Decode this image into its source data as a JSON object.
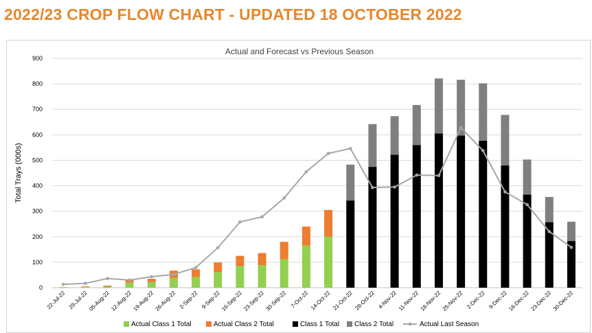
{
  "page": {
    "heading": "2022/23 CROP FLOW CHART - UPDATED 18 OCTOBER 2022"
  },
  "colors": {
    "actual_class1": "#92d050",
    "actual_class2": "#ed7d31",
    "class1": "#000000",
    "class2": "#7f7f7f",
    "last_season": "#a6a6a6",
    "heading": "#e8862a"
  },
  "chart_data": {
    "type": "bar",
    "stacked": true,
    "title": "Actual and Forecast vs Previous Season",
    "xlabel": "",
    "ylabel": "Total Trays (000s)",
    "ylim": [
      0,
      900
    ],
    "yticks": [
      0,
      100,
      200,
      300,
      400,
      500,
      600,
      700,
      800,
      900
    ],
    "grid": true,
    "legend_position": "bottom",
    "categories": [
      "22-Jul-22",
      "29-Jul-22",
      "05-Aug-22",
      "12-Aug-22",
      "19-Aug-22",
      "26-Aug-22",
      "2-Sep-22",
      "9-Sep-22",
      "16-Sep-22",
      "23-Sep-22",
      "30-Sep-22",
      "7-Oct-22",
      "14-Oct-22",
      "21-Oct-22",
      "28-Oct-22",
      "4-Nov-22",
      "11-Nov-22",
      "18-Nov-22",
      "25-Nov-22",
      "2-Dec-22",
      "9-Dec-22",
      "16-Dec-22",
      "23-Dec-22",
      "30-Dec-22"
    ],
    "series": [
      {
        "name": "Actual Class 1 Total",
        "kind": "bar",
        "color_key": "actual_class1",
        "values": [
          1,
          2,
          4,
          20,
          22,
          38,
          42,
          62,
          85,
          88,
          112,
          165,
          200,
          null,
          null,
          null,
          null,
          null,
          null,
          null,
          null,
          null,
          null,
          null
        ]
      },
      {
        "name": "Actual Class 2 Total",
        "kind": "bar",
        "color_key": "actual_class2",
        "values": [
          1,
          3,
          4,
          11,
          13,
          29,
          30,
          37,
          40,
          48,
          68,
          75,
          105,
          null,
          null,
          null,
          null,
          null,
          null,
          null,
          null,
          null,
          null,
          null
        ]
      },
      {
        "name": "Class 1 Total",
        "kind": "bar",
        "color_key": "class1",
        "values": [
          null,
          null,
          null,
          null,
          null,
          null,
          null,
          null,
          null,
          null,
          null,
          null,
          null,
          342,
          474,
          522,
          560,
          605,
          597,
          577,
          480,
          365,
          257,
          183
        ]
      },
      {
        "name": "Class 2 Total",
        "kind": "bar",
        "color_key": "class2",
        "values": [
          null,
          null,
          null,
          null,
          null,
          null,
          null,
          null,
          null,
          null,
          null,
          null,
          null,
          141,
          168,
          151,
          157,
          216,
          219,
          225,
          198,
          138,
          99,
          76
        ]
      },
      {
        "name": "Actual Last Season",
        "kind": "line",
        "color_key": "last_season",
        "values": [
          13,
          17,
          36,
          30,
          43,
          52,
          79,
          157,
          258,
          278,
          352,
          455,
          527,
          546,
          393,
          395,
          442,
          440,
          628,
          538,
          376,
          326,
          220,
          158
        ]
      }
    ]
  }
}
